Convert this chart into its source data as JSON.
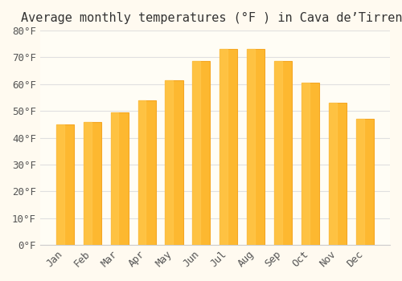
{
  "title": "Average monthly temperatures (°F ) in Cava de’Tirreni",
  "months": [
    "Jan",
    "Feb",
    "Mar",
    "Apr",
    "May",
    "Jun",
    "Jul",
    "Aug",
    "Sep",
    "Oct",
    "Nov",
    "Dec"
  ],
  "values": [
    45,
    46,
    49.5,
    54,
    61.5,
    68.5,
    73,
    73,
    68.5,
    60.5,
    53,
    47
  ],
  "bar_color_face": "#FDB830",
  "bar_color_edge": "#F5A623",
  "bar_gradient_top": "#FFCC55",
  "background_color": "#FFFAF0",
  "plot_bg_color": "#FFFDF5",
  "ylim": [
    0,
    80
  ],
  "yticks": [
    0,
    10,
    20,
    30,
    40,
    50,
    60,
    70,
    80
  ],
  "ytick_labels": [
    "0°F",
    "10°F",
    "20°F",
    "30°F",
    "40°F",
    "50°F",
    "60°F",
    "70°F",
    "80°F"
  ],
  "grid_color": "#E0E0E0",
  "title_fontsize": 11,
  "tick_fontsize": 9,
  "font_family": "monospace"
}
